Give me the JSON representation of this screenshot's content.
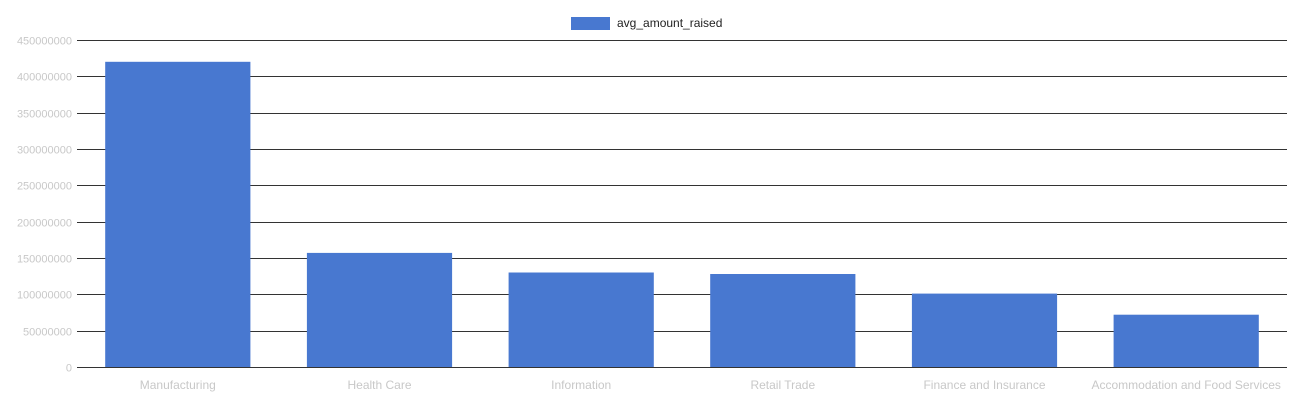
{
  "chart_data": {
    "type": "bar",
    "categories": [
      "Manufacturing",
      "Health Care",
      "Information",
      "Retail Trade",
      "Finance and Insurance",
      "Accommodation and Food Services"
    ],
    "series": [
      {
        "name": "avg_amount_raised",
        "values": [
          420000000,
          157000000,
          130000000,
          128000000,
          101000000,
          72000000
        ]
      }
    ],
    "ylim": [
      0,
      450000000
    ],
    "yticks": [
      "0",
      "50000000",
      "100000000",
      "150000000",
      "200000000",
      "250000000",
      "300000000",
      "350000000",
      "400000000",
      "450000000"
    ],
    "grid": true,
    "legend_position": "top",
    "colors": {
      "bar": "#4878d0",
      "grid": "#333333",
      "label": "#c8c8c8",
      "legend_text": "#222222"
    }
  }
}
